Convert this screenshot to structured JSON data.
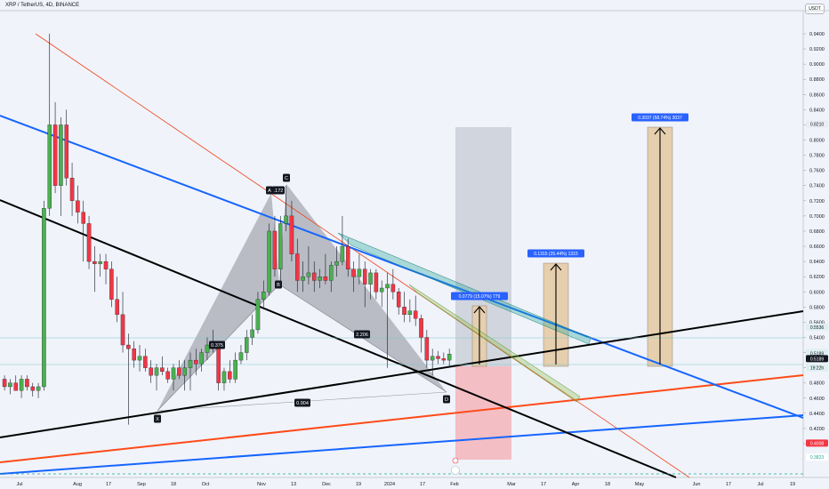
{
  "header": {
    "symbol_title": "XRP / TetherUS, 4D, BINANCE",
    "currency": "USDT"
  },
  "chart_data": {
    "type": "candlestick",
    "x_tick_labels": [
      "Jul",
      "Aug",
      "17",
      "Sep",
      "18",
      "Oct",
      "Nov",
      "13",
      "Dec",
      "19",
      "2024",
      "17",
      "Feb",
      "Mar",
      "17",
      "Apr",
      "18",
      "May",
      "Jun",
      "17",
      "Jul",
      "19"
    ],
    "y_tick_labels": [
      "0.4000",
      "0.4200",
      "0.4400",
      "0.4600",
      "0.4800",
      "0.5000",
      "0.5200",
      "0.5400",
      "0.5600",
      "0.5800",
      "0.6000",
      "0.6200",
      "0.6400",
      "0.6600",
      "0.6800",
      "0.7000",
      "0.7200",
      "0.7400",
      "0.7600",
      "0.7800",
      "0.8000",
      "0.8200",
      "0.8400",
      "0.8600",
      "0.8800",
      "0.9000",
      "0.9200",
      "0.9400"
    ],
    "ylim": [
      0.38,
      0.965
    ],
    "price_badges": [
      {
        "text": "0.8210",
        "price": 0.821,
        "bg": "#e9ecf2",
        "fg": "#131722"
      },
      {
        "text": "0.5536",
        "price": 0.5536,
        "bg": "#dfeff0",
        "fg": "#131722"
      },
      {
        "text": "0.5200",
        "price": 0.52,
        "bg": "#dfeff0",
        "fg": "#131722"
      },
      {
        "text": "0.5189",
        "price": 0.5189,
        "bg": "#dfeff0",
        "fg": "#131722"
      },
      {
        "text": "0.5189",
        "price": 0.512,
        "bg": "#131722",
        "fg": "#ffffff"
      },
      {
        "text": "19:22h",
        "price": 0.5,
        "bg": "#dfeff0",
        "fg": "#131722"
      },
      {
        "text": "0.4008",
        "price": 0.4008,
        "bg": "#f23645",
        "fg": "#ffffff"
      },
      {
        "text": "0.3823",
        "price": 0.3823,
        "bg": "#ffffff",
        "fg": "#22ab94"
      }
    ],
    "pattern_points": [
      {
        "label": "X",
        "price": 0.46
      },
      {
        "label": "A",
        "price": 0.735
      },
      {
        "label": "B",
        "price": 0.62
      },
      {
        "label": "C",
        "price": 0.746
      },
      {
        "label": "D",
        "price": 0.498
      }
    ],
    "pattern_ratios": [
      {
        "text": "0.375"
      },
      {
        "text": ".172"
      },
      {
        "text": "2.206"
      },
      {
        "text": "0.904"
      }
    ],
    "projections": [
      {
        "label": "0.0779 (15.07%) 779",
        "from": 0.51,
        "to": 0.594
      },
      {
        "label": "0.1315 (25.44%) 1315",
        "from": 0.51,
        "to": 0.647
      },
      {
        "label": "0.3037 (58.74%) 3037",
        "from": 0.51,
        "to": 0.821
      }
    ],
    "colors": {
      "up": "#4caf50",
      "down": "#f23645",
      "pattern_fill": "#9598a1",
      "projection_fill": "#e6cfae",
      "short_zone_profit": "#f3a6ad",
      "short_zone_loss": "#b8bcc6",
      "label_bg": "#2962ff"
    },
    "candles": [
      [
        0.485,
        0.49,
        0.47,
        0.475
      ],
      [
        0.475,
        0.485,
        0.465,
        0.48
      ],
      [
        0.48,
        0.49,
        0.47,
        0.47
      ],
      [
        0.47,
        0.49,
        0.46,
        0.485
      ],
      [
        0.485,
        0.49,
        0.47,
        0.475
      ],
      [
        0.475,
        0.48,
        0.462,
        0.47
      ],
      [
        0.47,
        0.48,
        0.46,
        0.475
      ],
      [
        0.475,
        0.72,
        0.47,
        0.71
      ],
      [
        0.71,
        0.94,
        0.7,
        0.82
      ],
      [
        0.82,
        0.85,
        0.73,
        0.74
      ],
      [
        0.74,
        0.83,
        0.7,
        0.82
      ],
      [
        0.82,
        0.84,
        0.74,
        0.75
      ],
      [
        0.75,
        0.77,
        0.7,
        0.72
      ],
      [
        0.72,
        0.74,
        0.69,
        0.705
      ],
      [
        0.705,
        0.72,
        0.64,
        0.69
      ],
      [
        0.69,
        0.7,
        0.63,
        0.64
      ],
      [
        0.64,
        0.66,
        0.6,
        0.637
      ],
      [
        0.637,
        0.65,
        0.62,
        0.64
      ],
      [
        0.64,
        0.65,
        0.61,
        0.63
      ],
      [
        0.63,
        0.64,
        0.58,
        0.59
      ],
      [
        0.59,
        0.62,
        0.56,
        0.57
      ],
      [
        0.57,
        0.6,
        0.52,
        0.53
      ],
      [
        0.53,
        0.545,
        0.425,
        0.525
      ],
      [
        0.525,
        0.535,
        0.5,
        0.51
      ],
      [
        0.51,
        0.53,
        0.495,
        0.515
      ],
      [
        0.515,
        0.525,
        0.495,
        0.5
      ],
      [
        0.5,
        0.51,
        0.48,
        0.49
      ],
      [
        0.49,
        0.505,
        0.47,
        0.5
      ],
      [
        0.5,
        0.515,
        0.49,
        0.495
      ],
      [
        0.495,
        0.5,
        0.48,
        0.485
      ],
      [
        0.485,
        0.505,
        0.47,
        0.5
      ],
      [
        0.5,
        0.51,
        0.485,
        0.49
      ],
      [
        0.49,
        0.51,
        0.47,
        0.5
      ],
      [
        0.5,
        0.52,
        0.47,
        0.51
      ],
      [
        0.51,
        0.525,
        0.49,
        0.505
      ],
      [
        0.505,
        0.525,
        0.495,
        0.52
      ],
      [
        0.52,
        0.54,
        0.51,
        0.53
      ],
      [
        0.53,
        0.55,
        0.52,
        0.525
      ],
      [
        0.525,
        0.53,
        0.47,
        0.48
      ],
      [
        0.48,
        0.5,
        0.47,
        0.495
      ],
      [
        0.495,
        0.51,
        0.48,
        0.485
      ],
      [
        0.485,
        0.52,
        0.48,
        0.51
      ],
      [
        0.51,
        0.53,
        0.505,
        0.52
      ],
      [
        0.52,
        0.55,
        0.51,
        0.54
      ],
      [
        0.54,
        0.57,
        0.53,
        0.55
      ],
      [
        0.55,
        0.6,
        0.545,
        0.59
      ],
      [
        0.59,
        0.615,
        0.58,
        0.6
      ],
      [
        0.6,
        0.69,
        0.595,
        0.68
      ],
      [
        0.68,
        0.7,
        0.62,
        0.63
      ],
      [
        0.63,
        0.7,
        0.615,
        0.69
      ],
      [
        0.69,
        0.74,
        0.68,
        0.7
      ],
      [
        0.7,
        0.72,
        0.64,
        0.65
      ],
      [
        0.65,
        0.67,
        0.6,
        0.615
      ],
      [
        0.615,
        0.64,
        0.6,
        0.62
      ],
      [
        0.62,
        0.66,
        0.61,
        0.625
      ],
      [
        0.625,
        0.64,
        0.6,
        0.615
      ],
      [
        0.615,
        0.63,
        0.605,
        0.62
      ],
      [
        0.62,
        0.65,
        0.61,
        0.615
      ],
      [
        0.615,
        0.64,
        0.6,
        0.635
      ],
      [
        0.635,
        0.66,
        0.62,
        0.64
      ],
      [
        0.64,
        0.7,
        0.635,
        0.66
      ],
      [
        0.66,
        0.67,
        0.62,
        0.63
      ],
      [
        0.63,
        0.64,
        0.6,
        0.62
      ],
      [
        0.62,
        0.65,
        0.61,
        0.63
      ],
      [
        0.63,
        0.64,
        0.58,
        0.61
      ],
      [
        0.61,
        0.63,
        0.59,
        0.625
      ],
      [
        0.625,
        0.63,
        0.59,
        0.6
      ],
      [
        0.6,
        0.615,
        0.58,
        0.605
      ],
      [
        0.605,
        0.625,
        0.5,
        0.61
      ],
      [
        0.61,
        0.63,
        0.59,
        0.6
      ],
      [
        0.6,
        0.605,
        0.57,
        0.58
      ],
      [
        0.58,
        0.6,
        0.56,
        0.57
      ],
      [
        0.57,
        0.59,
        0.56,
        0.575
      ],
      [
        0.575,
        0.595,
        0.555,
        0.565
      ],
      [
        0.565,
        0.57,
        0.52,
        0.54
      ],
      [
        0.54,
        0.55,
        0.5,
        0.51
      ],
      [
        0.51,
        0.525,
        0.49,
        0.515
      ],
      [
        0.515,
        0.522,
        0.505,
        0.512
      ],
      [
        0.512,
        0.52,
        0.505,
        0.51
      ],
      [
        0.51,
        0.525,
        0.5,
        0.518
      ]
    ]
  }
}
